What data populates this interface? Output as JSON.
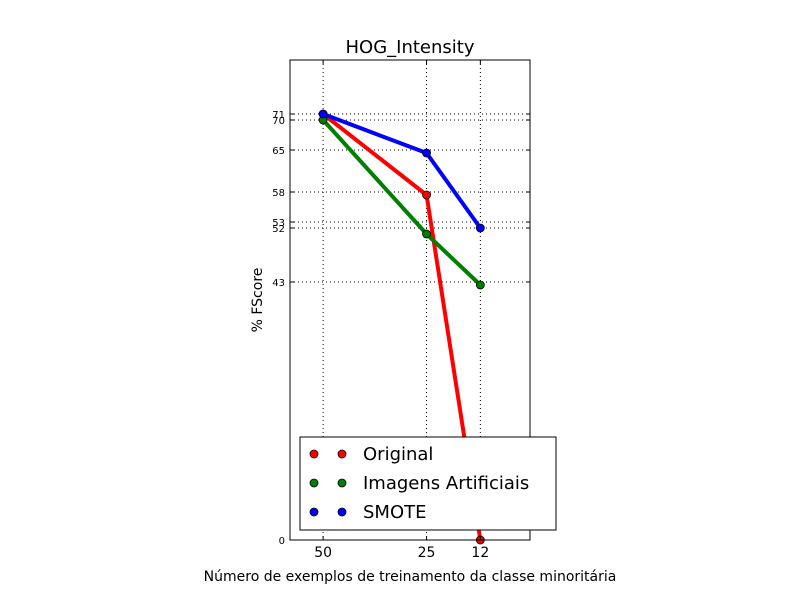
{
  "chart_data": {
    "type": "line",
    "title": "HOG_Intensity",
    "xlabel": "Número de exemplos de treinamento da classe minoritária",
    "ylabel": "% FScore",
    "x": [
      50,
      25,
      12
    ],
    "x_tick_labels": [
      "50",
      "25",
      "12"
    ],
    "y_tick_labels": [
      "0",
      "43",
      "52",
      "53",
      "58",
      "65",
      "70",
      "71"
    ],
    "y_ticks": [
      0,
      43,
      52,
      53,
      58,
      65,
      70,
      71
    ],
    "ylim": [
      0,
      80
    ],
    "grid": true,
    "legend_position": "lower-right",
    "series": [
      {
        "name": "Original",
        "color": "#ff0000",
        "values": [
          71,
          57.5,
          0
        ]
      },
      {
        "name": "Imagens Artificiais",
        "color": "#008000",
        "values": [
          70,
          51,
          42.5
        ]
      },
      {
        "name": "SMOTE",
        "color": "#0000ff",
        "values": [
          71,
          64.5,
          52
        ]
      }
    ]
  }
}
